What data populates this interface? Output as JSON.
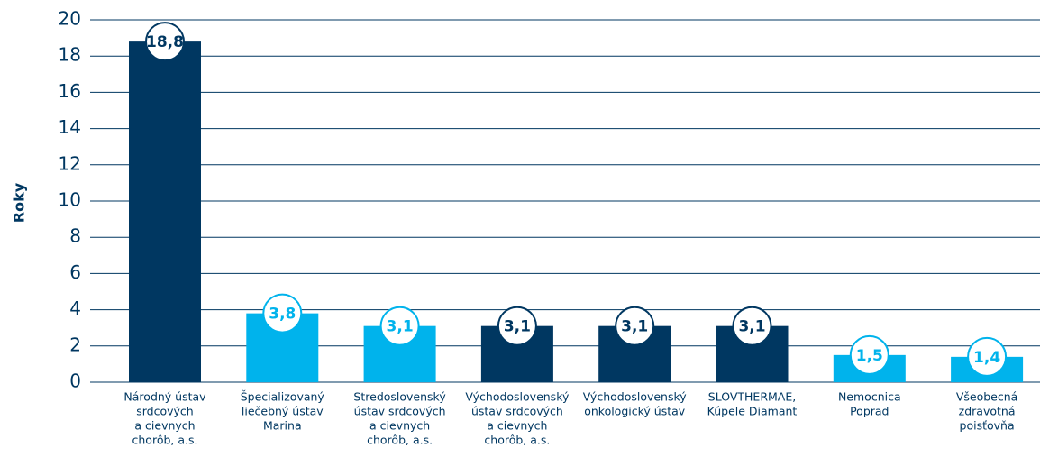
{
  "chart_data": {
    "type": "bar",
    "y_label": "Roky",
    "categories": [
      [
        "Národný ústav",
        "srdcových",
        "a cievnych",
        "chorôb, a.s."
      ],
      [
        "Špecializovaný",
        "liečebný ústav",
        "Marina"
      ],
      [
        "Stredoslovenský",
        "ústav srdcových",
        "a cievnych",
        "chorôb, a.s."
      ],
      [
        "Východoslovenský",
        "ústav srdcových",
        "a cievnych",
        "chorôb, a.s."
      ],
      [
        "Východoslovenský",
        "onkologický ústav"
      ],
      [
        "SLOVTHERMAE,",
        "Kúpele Diamant"
      ],
      [
        "Nemocnica",
        "Poprad"
      ],
      [
        "Všeobecná",
        "zdravotná",
        "poisťovňa"
      ]
    ],
    "values": [
      18.8,
      3.8,
      3.1,
      3.1,
      3.1,
      3.1,
      1.5,
      1.4
    ],
    "value_labels": [
      "18,8",
      "3,8",
      "3,1",
      "3,1",
      "3,1",
      "3,1",
      "1,5",
      "1,4"
    ],
    "colors": [
      "#003761",
      "#00b3ec",
      "#00b3ec",
      "#003761",
      "#003761",
      "#003761",
      "#00b3ec",
      "#00b3ec"
    ],
    "ylim": [
      0,
      20
    ],
    "yticks": [
      0,
      2,
      4,
      6,
      8,
      10,
      12,
      14,
      16,
      18,
      20
    ],
    "grid": true
  }
}
